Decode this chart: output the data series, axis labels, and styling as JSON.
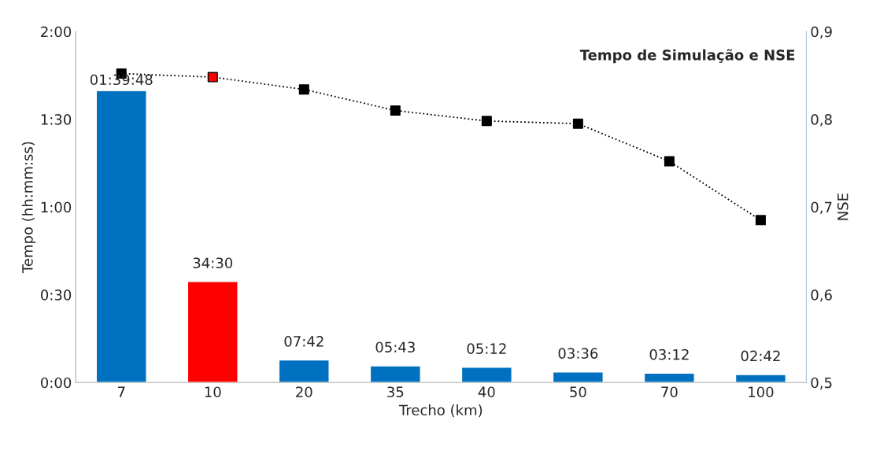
{
  "chart_data": {
    "type": "bar",
    "title": "Tempo de Simulação e NSE",
    "xlabel": "Trecho (km)",
    "ylabel": "Tempo (hh:mm:ss)",
    "y2label": "NSE",
    "categories": [
      "7",
      "10",
      "20",
      "35",
      "40",
      "50",
      "70",
      "100"
    ],
    "series": [
      {
        "type": "bar",
        "colors": [
          "#0070c0",
          "#ff0000",
          "#0070c0",
          "#0070c0",
          "#0070c0",
          "#0070c0",
          "#0070c0",
          "#0070c0"
        ],
        "values": [
          99.8,
          34.5,
          7.7,
          5.72,
          5.2,
          3.6,
          3.2,
          2.7
        ],
        "value_labels": [
          "01:39:48",
          "34:30",
          "07:42",
          "05:43",
          "05:12",
          "03:36",
          "03:12",
          "02:42"
        ]
      },
      {
        "type": "line",
        "axis": "y2",
        "color": "#000000",
        "colors": [
          "#000000",
          "#ff0000",
          "#000000",
          "#000000",
          "#000000",
          "#000000",
          "#000000",
          "#000000"
        ],
        "values": [
          0.852,
          0.848,
          0.834,
          0.81,
          0.798,
          0.795,
          0.752,
          0.685
        ],
        "marker": "square",
        "line_style": "dotted"
      }
    ],
    "ylim": [
      0,
      120
    ],
    "yticks": [
      {
        "value": 0,
        "label": "0:00"
      },
      {
        "value": 30,
        "label": "0:30"
      },
      {
        "value": 60,
        "label": "1:00"
      },
      {
        "value": 90,
        "label": "1:30"
      },
      {
        "value": 120,
        "label": "2:00"
      }
    ],
    "y2lim": [
      0.5,
      0.9
    ],
    "y2ticks": [
      {
        "value": 0.5,
        "label": "0,5"
      },
      {
        "value": 0.6,
        "label": "0,6"
      },
      {
        "value": 0.7,
        "label": "0,7"
      },
      {
        "value": 0.8,
        "label": "0,8"
      },
      {
        "value": 0.9,
        "label": "0,9"
      }
    ],
    "grid": false,
    "legend": false
  }
}
